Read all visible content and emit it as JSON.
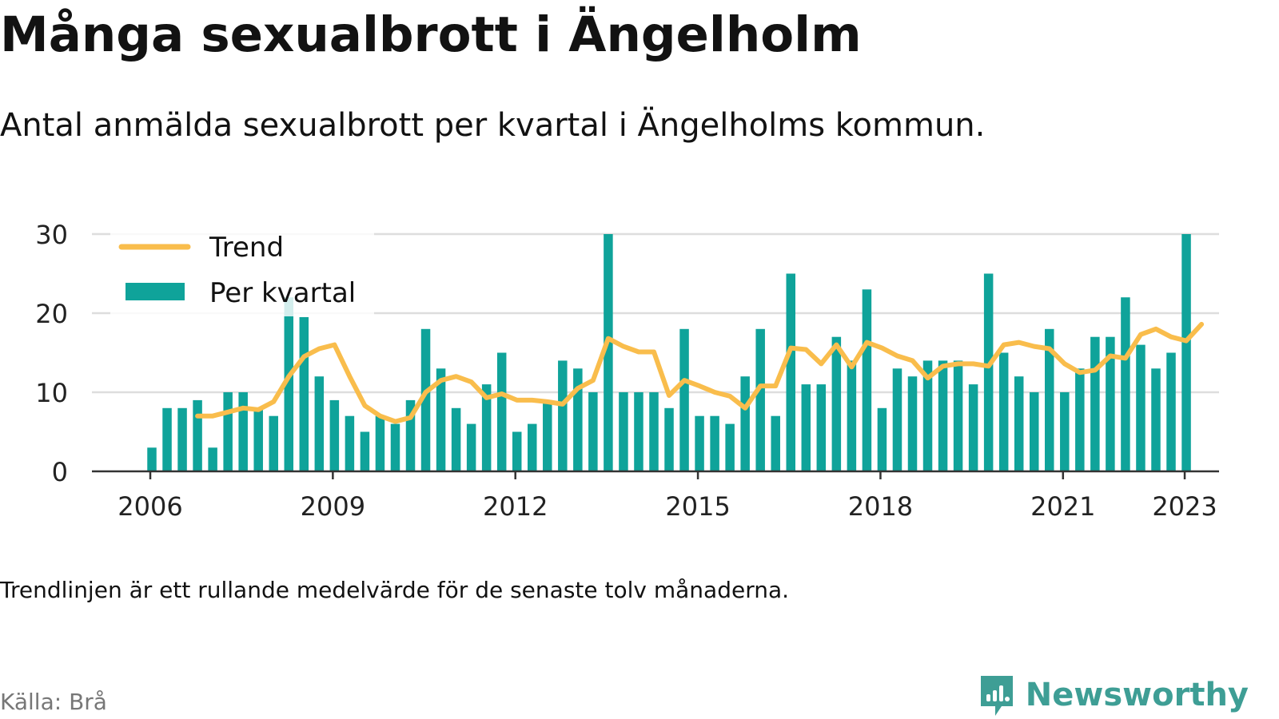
{
  "title": "Många sexualbrott i Ängelholm",
  "subtitle": "Antal anmälda sexualbrott per kvartal i Ängelholms kommun.",
  "note": "Trendlinjen är ett rullande medelvärde för de senaste tolv månaderna.",
  "source": "Källa: Brå",
  "brand": "Newsworthy",
  "colors": {
    "bars": "#0fa39a",
    "trend": "#f9bd4c",
    "grid": "#dddddd",
    "axis": "#333333"
  },
  "chart_data": {
    "type": "bar",
    "ylim": [
      0,
      30
    ],
    "yticks": [
      0,
      10,
      20,
      30
    ],
    "xticks": [
      {
        "label": "2006",
        "q": 0
      },
      {
        "label": "2009",
        "q": 12
      },
      {
        "label": "2012",
        "q": 24
      },
      {
        "label": "2015",
        "q": 36
      },
      {
        "label": "2018",
        "q": 48
      },
      {
        "label": "2021",
        "q": 60
      },
      {
        "label": "2023",
        "q": 68
      }
    ],
    "grid": true,
    "legend_position": "top-left",
    "series": [
      {
        "name": "Per kvartal",
        "type": "bar",
        "values": [
          3,
          8,
          8,
          9,
          3,
          10,
          10,
          8,
          7,
          22,
          19.5,
          12,
          9,
          7,
          5,
          7,
          6,
          9,
          18,
          13,
          8,
          6,
          11,
          15,
          5,
          6,
          9,
          14,
          13,
          10,
          30,
          10,
          10,
          10,
          8,
          18,
          7,
          7,
          6,
          12,
          18,
          7,
          25,
          11,
          11,
          17,
          14,
          23,
          8,
          13,
          12,
          14,
          14,
          14,
          11,
          25,
          15,
          12,
          10,
          18,
          10,
          13,
          17,
          17,
          22,
          16,
          13,
          15,
          30
        ]
      },
      {
        "name": "Trend",
        "type": "line",
        "start_index": 3,
        "values": [
          7,
          7,
          7.5,
          8,
          7.8,
          8.8,
          12,
          14.5,
          15.5,
          16,
          12,
          8.3,
          7,
          6.3,
          6.8,
          10,
          11.5,
          12,
          11.3,
          9.3,
          9.8,
          9,
          9,
          8.8,
          8.5,
          10.5,
          11.5,
          16.8,
          15.8,
          15.1,
          15.1,
          9.6,
          11.5,
          10.8,
          10,
          9.5,
          8,
          10.8,
          10.8,
          15.6,
          15.4,
          13.6,
          16,
          13.2,
          16.3,
          15.6,
          14.6,
          14,
          11.8,
          13.3,
          13.6,
          13.6,
          13.3,
          16,
          16.3,
          15.8,
          15.5,
          13.6,
          12.5,
          12.8,
          14.6,
          14.3,
          17.3,
          18,
          17,
          16.5,
          18.6
        ]
      }
    ]
  }
}
